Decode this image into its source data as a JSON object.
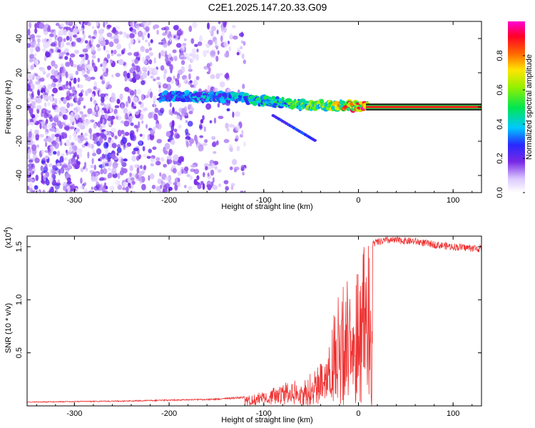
{
  "title": "C2E1.2025.147.20.33.G09",
  "colorbar": {
    "label": "Normalized spectral amplitude",
    "ticks": [
      "0.0",
      "0.2",
      "0.4",
      "0.6",
      "0.8"
    ],
    "tick_values": [
      0.0,
      0.2,
      0.4,
      0.6,
      0.8
    ]
  },
  "chart_data": [
    {
      "type": "heatmap",
      "title": "",
      "xlabel": "Height of straight line (km)",
      "ylabel": "Frequency (Hz)",
      "xlim": [
        -350,
        130
      ],
      "ylim": [
        -50,
        50
      ],
      "x_ticks": [
        -300,
        -200,
        -100,
        0,
        100
      ],
      "x_tick_labels": [
        "-300",
        "-200",
        "-100",
        "0",
        "100"
      ],
      "y_ticks": [
        -40,
        -20,
        0,
        20,
        40
      ],
      "y_tick_labels": [
        "-40",
        "-20",
        "0",
        "20",
        "40"
      ],
      "description_of_content": {
        "noise_region_x": [
          -350,
          -130
        ],
        "main_ridge": [
          {
            "x": -210,
            "y": 6,
            "amp": 0.35
          },
          {
            "x": -180,
            "y": 6,
            "amp": 0.4
          },
          {
            "x": -150,
            "y": 6,
            "amp": 0.4
          },
          {
            "x": -130,
            "y": 6,
            "amp": 0.45
          },
          {
            "x": -110,
            "y": 4,
            "amp": 0.5
          },
          {
            "x": -90,
            "y": 3,
            "amp": 0.5
          },
          {
            "x": -70,
            "y": 2,
            "amp": 0.55
          },
          {
            "x": -50,
            "y": 1,
            "amp": 0.6
          },
          {
            "x": -30,
            "y": 1,
            "amp": 0.65
          },
          {
            "x": -10,
            "y": 0.5,
            "amp": 0.85
          },
          {
            "x": 10,
            "y": 0,
            "amp": 1.0
          },
          {
            "x": 130,
            "y": 0,
            "amp": 1.0
          }
        ]
      }
    },
    {
      "type": "line",
      "title": "",
      "xlabel": "Height of straight line (km)",
      "ylabel": "SNR (10 * v/v)",
      "y_multiplier_label": "(x10",
      "y_multiplier_exp": "4",
      "xlim": [
        -350,
        130
      ],
      "ylim": [
        0,
        16000
      ],
      "x_ticks": [
        -300,
        -200,
        -100,
        0,
        100
      ],
      "x_tick_labels": [
        "-300",
        "-200",
        "-100",
        "0",
        "100"
      ],
      "y_ticks": [
        5000,
        10000,
        15000
      ],
      "y_tick_labels": [
        "0.5",
        "1.0",
        "1.5"
      ],
      "color": "#ee3333",
      "series": [
        {
          "x": [
            -350,
            -300,
            -250,
            -200,
            -150,
            -120,
            -100,
            -80,
            -60,
            -45,
            -35,
            -30,
            -25,
            -20,
            -15,
            -10,
            -5,
            0,
            5,
            10,
            20,
            30,
            40,
            60,
            80,
            100,
            130
          ],
          "y": [
            400,
            450,
            500,
            600,
            700,
            900,
            1400,
            2200,
            2500,
            3500,
            4500,
            6500,
            9000,
            11000,
            12000,
            12500,
            11000,
            13000,
            15000,
            15200,
            15400,
            15600,
            15600,
            15500,
            15200,
            15000,
            14800
          ]
        }
      ]
    }
  ]
}
